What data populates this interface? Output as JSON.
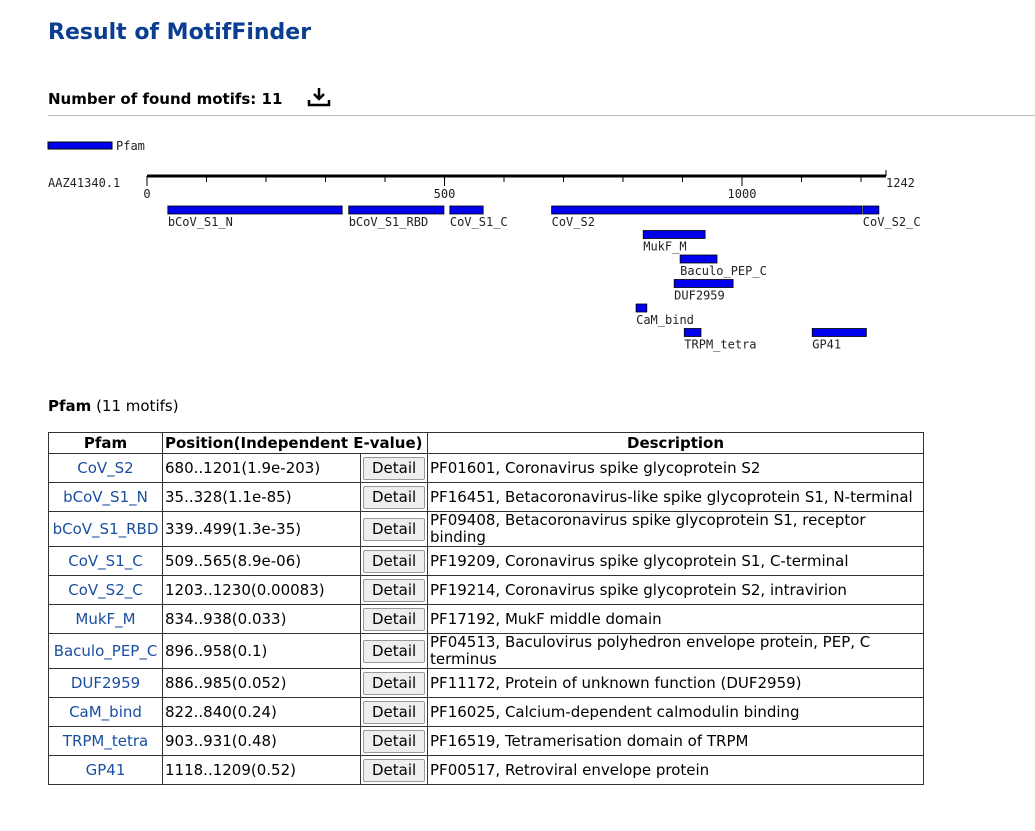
{
  "header": {
    "title": "Result of MotifFinder",
    "found": "Number of found motifs: 11"
  },
  "track": {
    "legend": "Pfam",
    "sequence": "AAZ41340.1",
    "lim": [
      0,
      1242
    ],
    "ticks": [
      0,
      500,
      1000,
      1242
    ],
    "minor_ticks": [
      100,
      200,
      300,
      400,
      600,
      700,
      800,
      900,
      1100,
      1200
    ]
  },
  "section": {
    "title": "Pfam",
    "count": "(11 motifs)"
  },
  "table": {
    "headers": [
      "Pfam",
      "Position(Independent E-value)",
      "Description"
    ],
    "button": "Detail",
    "rows": [
      {
        "name": "CoV_S2",
        "start": 680,
        "end": 1201,
        "position": "680..1201(1.9e-203)",
        "description": "PF01601, Coronavirus spike glycoprotein S2"
      },
      {
        "name": "bCoV_S1_N",
        "start": 35,
        "end": 328,
        "position": "35..328(1.1e-85)",
        "description": "PF16451, Betacoronavirus-like spike glycoprotein S1, N-terminal"
      },
      {
        "name": "bCoV_S1_RBD",
        "start": 339,
        "end": 499,
        "position": "339..499(1.3e-35)",
        "description": "PF09408, Betacoronavirus spike glycoprotein S1, receptor binding"
      },
      {
        "name": "CoV_S1_C",
        "start": 509,
        "end": 565,
        "position": "509..565(8.9e-06)",
        "description": "PF19209, Coronavirus spike glycoprotein S1, C-terminal"
      },
      {
        "name": "CoV_S2_C",
        "start": 1203,
        "end": 1230,
        "position": "1203..1230(0.00083)",
        "description": "PF19214, Coronavirus spike glycoprotein S2, intravirion"
      },
      {
        "name": "MukF_M",
        "start": 834,
        "end": 938,
        "position": "834..938(0.033)",
        "description": "PF17192, MukF middle domain"
      },
      {
        "name": "Baculo_PEP_C",
        "start": 896,
        "end": 958,
        "position": "896..958(0.1)",
        "description": "PF04513, Baculovirus polyhedron envelope protein, PEP, C terminus"
      },
      {
        "name": "DUF2959",
        "start": 886,
        "end": 985,
        "position": "886..985(0.052)",
        "description": "PF11172, Protein of unknown function (DUF2959)"
      },
      {
        "name": "CaM_bind",
        "start": 822,
        "end": 840,
        "position": "822..840(0.24)",
        "description": "PF16025, Calcium-dependent calmodulin binding"
      },
      {
        "name": "TRPM_tetra",
        "start": 903,
        "end": 931,
        "position": "903..931(0.48)",
        "description": "PF16519, Tetramerisation domain of TRPM"
      },
      {
        "name": "GP41",
        "start": 1118,
        "end": 1209,
        "position": "1118..1209(0.52)",
        "description": "PF00517, Retroviral envelope protein"
      }
    ]
  }
}
